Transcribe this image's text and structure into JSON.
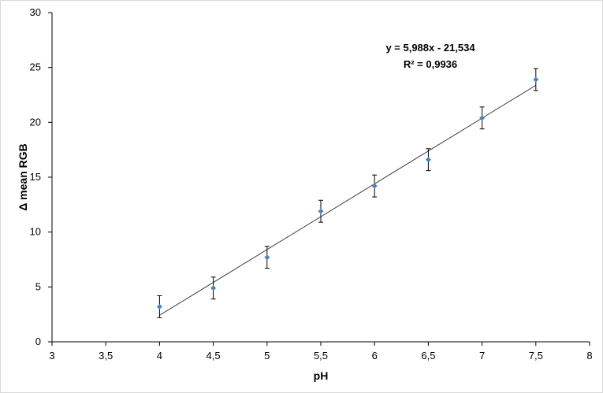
{
  "chart_data": {
    "type": "scatter",
    "title": "",
    "xlabel": "pH",
    "ylabel": "Δ mean RGB",
    "xlim": [
      3,
      8
    ],
    "ylim": [
      0,
      30
    ],
    "x_ticks": [
      3,
      3.5,
      4,
      4.5,
      5,
      5.5,
      6,
      6.5,
      7,
      7.5,
      8
    ],
    "x_tick_labels": [
      "3",
      "3,5",
      "4",
      "4,5",
      "5",
      "5,5",
      "6",
      "6,5",
      "7",
      "7,5",
      "8"
    ],
    "y_ticks": [
      0,
      5,
      10,
      15,
      20,
      25,
      30
    ],
    "y_tick_labels": [
      "0",
      "5",
      "10",
      "15",
      "20",
      "25",
      "30"
    ],
    "grid": false,
    "legend": "none",
    "marker_color": "#4f81bd",
    "series": [
      {
        "x": [
          4,
          4.5,
          5,
          5.5,
          6,
          6.5,
          7,
          7.5
        ],
        "y": [
          3.2,
          4.9,
          7.7,
          11.9,
          14.2,
          16.6,
          20.4,
          23.9
        ],
        "error": [
          1.0,
          1.0,
          1.0,
          1.0,
          1.0,
          1.0,
          1.0,
          1.0
        ]
      }
    ],
    "trendline": {
      "slope": 5.988,
      "intercept": -21.534,
      "equation_label": "y = 5,988x - 21,534",
      "r2_label": "R² = 0,9936"
    }
  }
}
